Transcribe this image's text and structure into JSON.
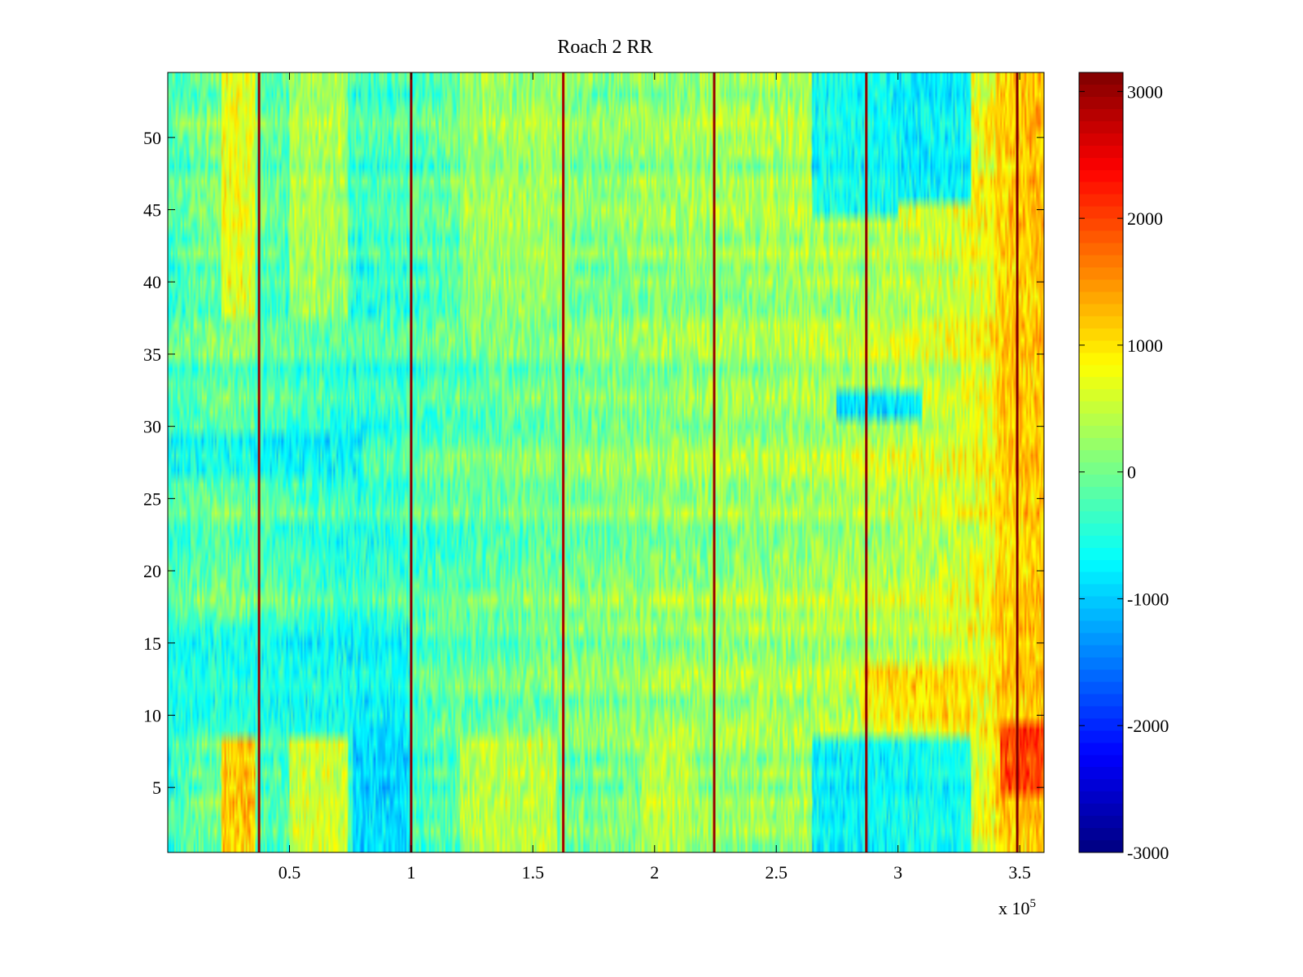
{
  "chart_data": {
    "type": "heatmap",
    "title": "Roach 2 RR",
    "xlabel": "",
    "ylabel": "",
    "x_range": [
      0,
      360000
    ],
    "y_range": [
      0.5,
      54.5
    ],
    "n_rows": 54,
    "x_ticks": [
      {
        "value": 50000,
        "label": "0.5"
      },
      {
        "value": 100000,
        "label": "1"
      },
      {
        "value": 150000,
        "label": "1.5"
      },
      {
        "value": 200000,
        "label": "2"
      },
      {
        "value": 250000,
        "label": "2.5"
      },
      {
        "value": 300000,
        "label": "3"
      },
      {
        "value": 350000,
        "label": "3.5"
      }
    ],
    "x_exponent": {
      "base": "x 10",
      "power": "5"
    },
    "y_ticks": [
      {
        "value": 5,
        "label": "5"
      },
      {
        "value": 10,
        "label": "10"
      },
      {
        "value": 15,
        "label": "15"
      },
      {
        "value": 20,
        "label": "20"
      },
      {
        "value": 25,
        "label": "25"
      },
      {
        "value": 30,
        "label": "30"
      },
      {
        "value": 35,
        "label": "35"
      },
      {
        "value": 40,
        "label": "40"
      },
      {
        "value": 45,
        "label": "45"
      },
      {
        "value": 50,
        "label": "50"
      }
    ],
    "colorbar": {
      "colormap": "jet",
      "range": [
        -3000,
        3150
      ],
      "ticks": [
        {
          "value": 3000,
          "label": "3000"
        },
        {
          "value": 2000,
          "label": "2000"
        },
        {
          "value": 1000,
          "label": "1000"
        },
        {
          "value": 0,
          "label": "0"
        },
        {
          "value": -1000,
          "label": "-1000"
        },
        {
          "value": -2000,
          "label": "-2000"
        },
        {
          "value": -3000,
          "label": "-3000"
        }
      ]
    },
    "base_profile": [
      {
        "x": 0,
        "value": -300
      },
      {
        "x": 20000,
        "value": 0
      },
      {
        "x": 50000,
        "value": -250
      },
      {
        "x": 80000,
        "value": -400
      },
      {
        "x": 120000,
        "value": -150
      },
      {
        "x": 160000,
        "value": 0
      },
      {
        "x": 200000,
        "value": 150
      },
      {
        "x": 240000,
        "value": 250
      },
      {
        "x": 280000,
        "value": 350
      },
      {
        "x": 320000,
        "value": 550
      },
      {
        "x": 340000,
        "value": 800
      },
      {
        "x": 360000,
        "value": 1100
      }
    ],
    "spike_lines": [
      {
        "x": 37500,
        "value": 3000
      },
      {
        "x": 100000,
        "value": 3100
      },
      {
        "x": 162500,
        "value": 2900
      },
      {
        "x": 224500,
        "value": 3000
      },
      {
        "x": 287000,
        "value": 3050
      },
      {
        "x": 349000,
        "value": 3150
      }
    ],
    "regions": [
      {
        "x_range": [
          22000,
          36000
        ],
        "rows": [
          38,
          54
        ],
        "value": 1300
      },
      {
        "x_range": [
          50000,
          74000
        ],
        "rows": [
          38,
          54
        ],
        "value": 800
      },
      {
        "x_range": [
          22000,
          36000
        ],
        "rows": [
          1,
          8
        ],
        "value": 2200
      },
      {
        "x_range": [
          50000,
          74000
        ],
        "rows": [
          1,
          8
        ],
        "value": 1300
      },
      {
        "x_range": [
          76000,
          100000
        ],
        "rows": [
          1,
          9
        ],
        "value": -1300
      },
      {
        "x_range": [
          120000,
          160000
        ],
        "rows": [
          1,
          8
        ],
        "value": 900
      },
      {
        "x_range": [
          195000,
          215000
        ],
        "rows": [
          1,
          8
        ],
        "value": 700
      },
      {
        "x_range": [
          265000,
          300000
        ],
        "rows": [
          45,
          54
        ],
        "value": -1500
      },
      {
        "x_range": [
          300000,
          330000
        ],
        "rows": [
          46,
          54
        ],
        "value": -1800
      },
      {
        "x_range": [
          265000,
          330000
        ],
        "rows": [
          1,
          8
        ],
        "value": -1500
      },
      {
        "x_range": [
          275000,
          310000
        ],
        "rows": [
          31,
          32
        ],
        "value": -1800
      },
      {
        "x_range": [
          340000,
          360000
        ],
        "rows": [
          1,
          54
        ],
        "value": 1300
      },
      {
        "x_range": [
          342000,
          360000
        ],
        "rows": [
          5,
          9
        ],
        "value": 2700
      },
      {
        "x_range": [
          0,
          100000
        ],
        "rows": [
          9,
          16
        ],
        "value": -900
      },
      {
        "x_range": [
          285000,
          330000
        ],
        "rows": [
          10,
          13
        ],
        "value": 1400
      },
      {
        "x_range": [
          0,
          80000
        ],
        "rows": [
          27,
          29
        ],
        "value": -1100
      },
      {
        "x_range": [
          120000,
          165000
        ],
        "rows": [
          38,
          54
        ],
        "value": 500
      }
    ]
  }
}
